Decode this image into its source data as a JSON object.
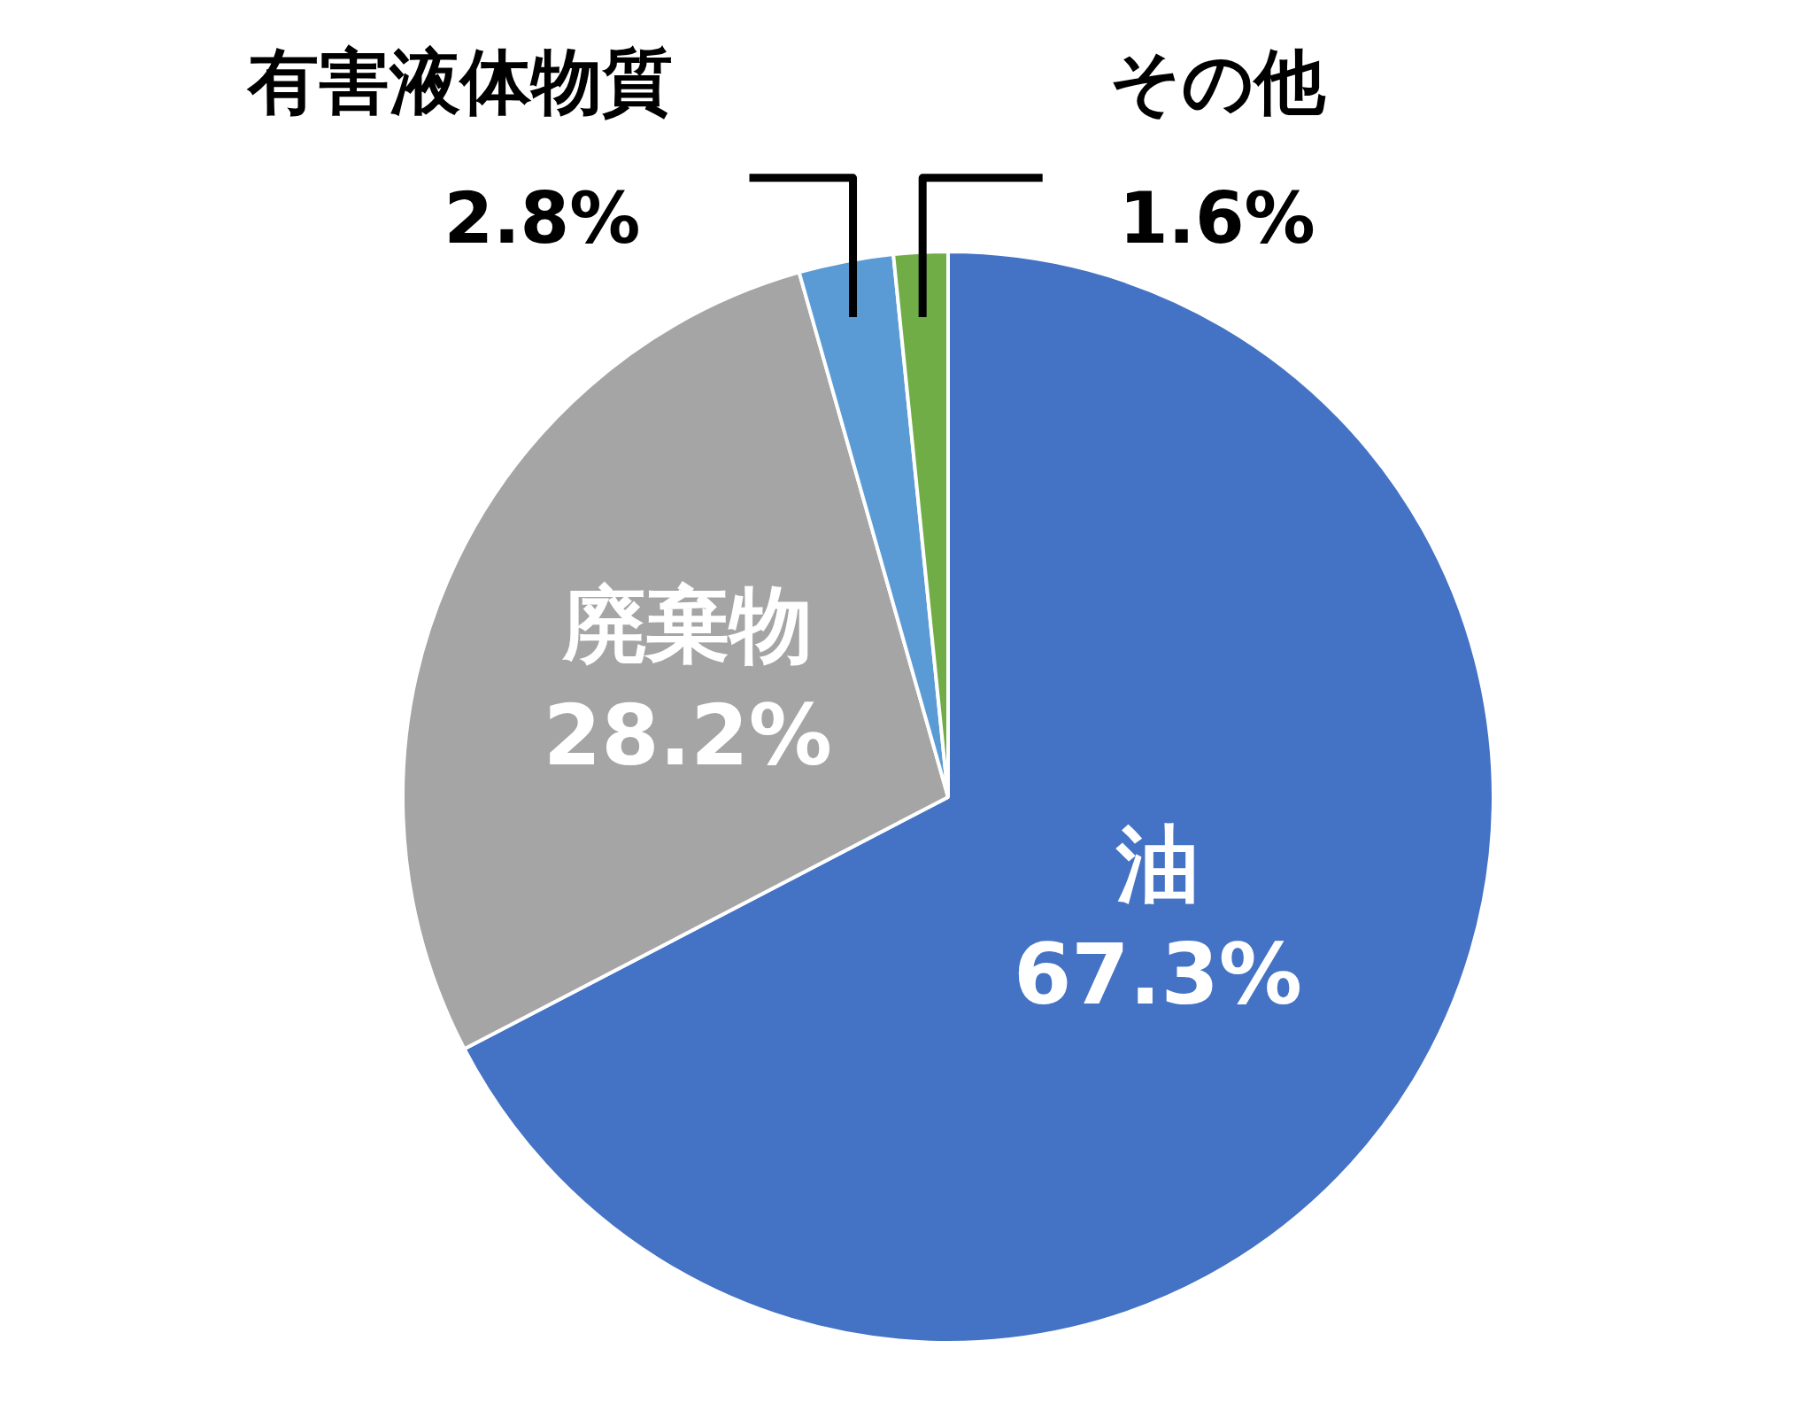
{
  "chart_data": {
    "type": "pie",
    "categories": [
      "油",
      "廃棄物",
      "有害液体物質",
      "その他"
    ],
    "values": [
      67.3,
      28.2,
      2.8,
      1.6
    ],
    "colors": [
      "#4472c4",
      "#a5a5a5",
      "#5b9bd5",
      "#70ad47"
    ],
    "value_labels": [
      "67.3%",
      "28.2%",
      "2.8%",
      "1.6%"
    ],
    "legend": false
  }
}
